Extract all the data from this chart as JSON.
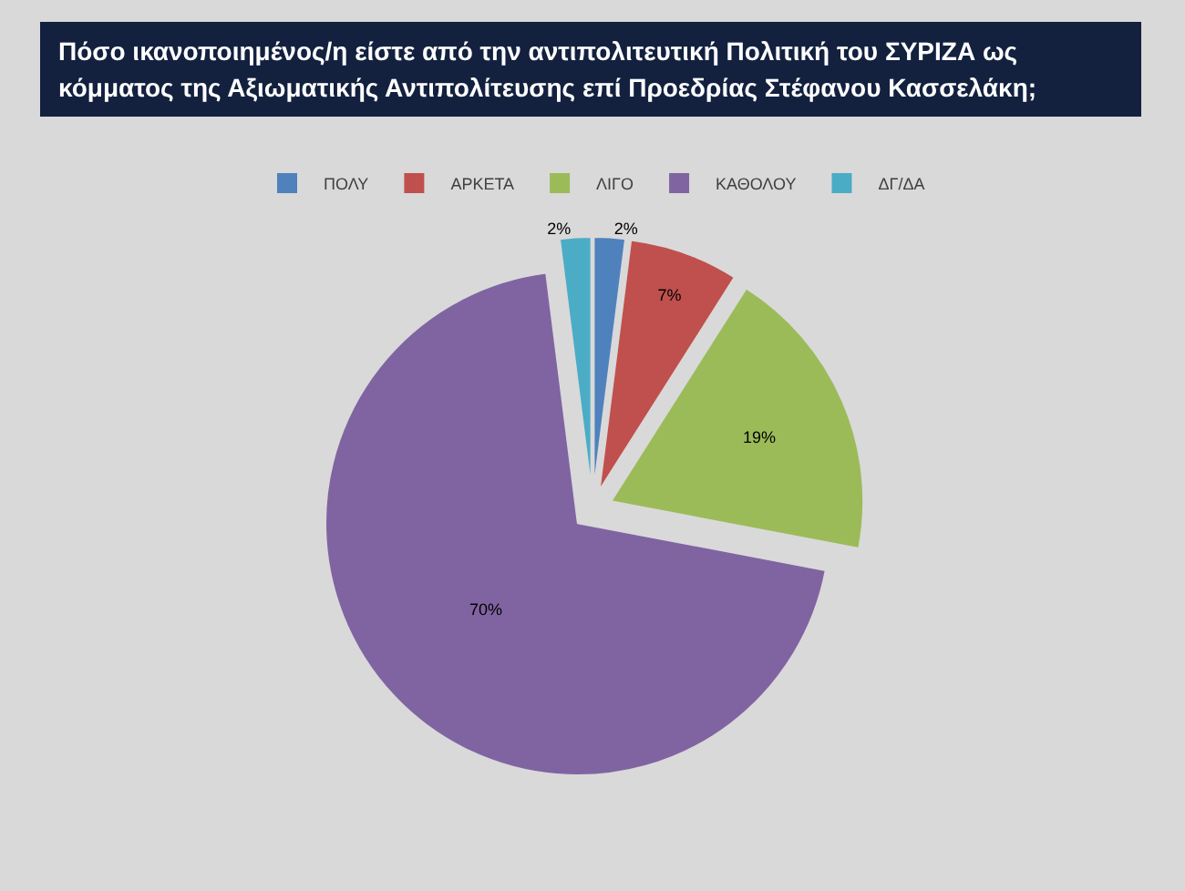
{
  "chart_data": {
    "type": "pie",
    "title": "Πόσο ικανοποιημένος/η είστε από την αντιπολιτευτική Πολιτική του ΣΥΡΙΖΑ ως κόμματος της Αξιωματικής Αντιπολίτευσης επί Προεδρίας Στέφανου Κασσελάκη;",
    "categories": [
      "ΠΟΛΥ",
      "ΑΡΚΕΤΑ",
      "ΛΙΓΟ",
      "ΚΑΘΟΛΟΥ",
      "ΔΓ/ΔΑ"
    ],
    "values": [
      2,
      7,
      19,
      70,
      2
    ],
    "colors": [
      "#4f81bd",
      "#c0504d",
      "#9bbb59",
      "#8064a2",
      "#4bacc6"
    ],
    "value_labels": [
      "2%",
      "7%",
      "19%",
      "70%",
      "2%"
    ],
    "legend": "top"
  }
}
